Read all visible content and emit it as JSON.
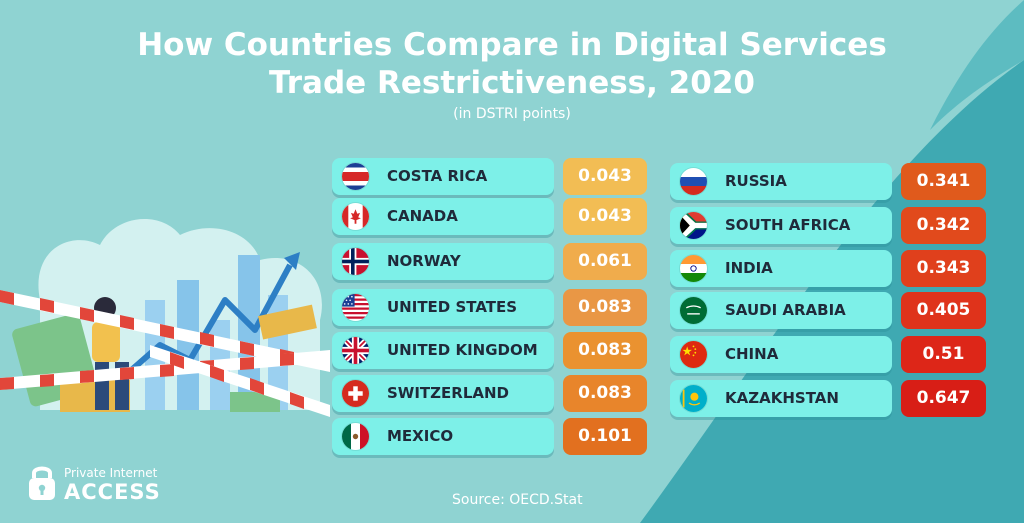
{
  "title_line1": "How Countries Compare in Digital Services",
  "title_line2": "Trade Restrictiveness, 2020",
  "subtitle": "(in DSTRI points)",
  "source": "Source: OECD.Stat",
  "logo": {
    "line1": "Private Internet",
    "line2": "ACCESS"
  },
  "chart_data": {
    "type": "table",
    "title": "How Countries Compare in Digital Services Trade Restrictiveness, 2020",
    "unit": "(in DSTRI points)",
    "columns": [
      {
        "rows": [
          {
            "country": "COSTA RICA",
            "value_label": "0.043",
            "value": 0.043,
            "color": "#f2bd54",
            "flag": "costa-rica-flag"
          },
          {
            "country": "CANADA",
            "value_label": "0.043",
            "value": 0.043,
            "color": "#f2bd54",
            "flag": "canada-flag"
          },
          {
            "country": "NORWAY",
            "value_label": "0.061",
            "value": 0.061,
            "color": "#f0ac4c",
            "flag": "norway-flag"
          },
          {
            "country": "UNITED STATES",
            "value_label": "0.083",
            "value": 0.083,
            "color": "#e99745",
            "flag": "united-states-flag"
          },
          {
            "country": "UNITED KINGDOM",
            "value_label": "0.083",
            "value": 0.083,
            "color": "#ea9230",
            "flag": "united-kingdom-flag"
          },
          {
            "country": "SWITZERLAND",
            "value_label": "0.083",
            "value": 0.083,
            "color": "#e8852b",
            "flag": "switzerland-flag"
          },
          {
            "country": "MEXICO",
            "value_label": "0.101",
            "value": 0.101,
            "color": "#e2701f",
            "flag": "mexico-flag"
          }
        ]
      },
      {
        "rows": [
          {
            "country": "RUSSIA",
            "value_label": "0.341",
            "value": 0.341,
            "color": "#e05a1c",
            "flag": "russia-flag"
          },
          {
            "country": "SOUTH AFRICA",
            "value_label": "0.342",
            "value": 0.342,
            "color": "#e14a1c",
            "flag": "south-africa-flag"
          },
          {
            "country": "INDIA",
            "value_label": "0.343",
            "value": 0.343,
            "color": "#e0401c",
            "flag": "india-flag"
          },
          {
            "country": "SAUDI ARABIA",
            "value_label": "0.405",
            "value": 0.405,
            "color": "#df331b",
            "flag": "saudi-arabia-flag"
          },
          {
            "country": "CHINA",
            "value_label": "0.51",
            "value": 0.51,
            "color": "#dd2618",
            "flag": "china-flag"
          },
          {
            "country": "KAZAKHSTAN",
            "value_label": "0.647",
            "value": 0.647,
            "color": "#d81e16",
            "flag": "kazakhstan-flag"
          }
        ]
      }
    ]
  }
}
